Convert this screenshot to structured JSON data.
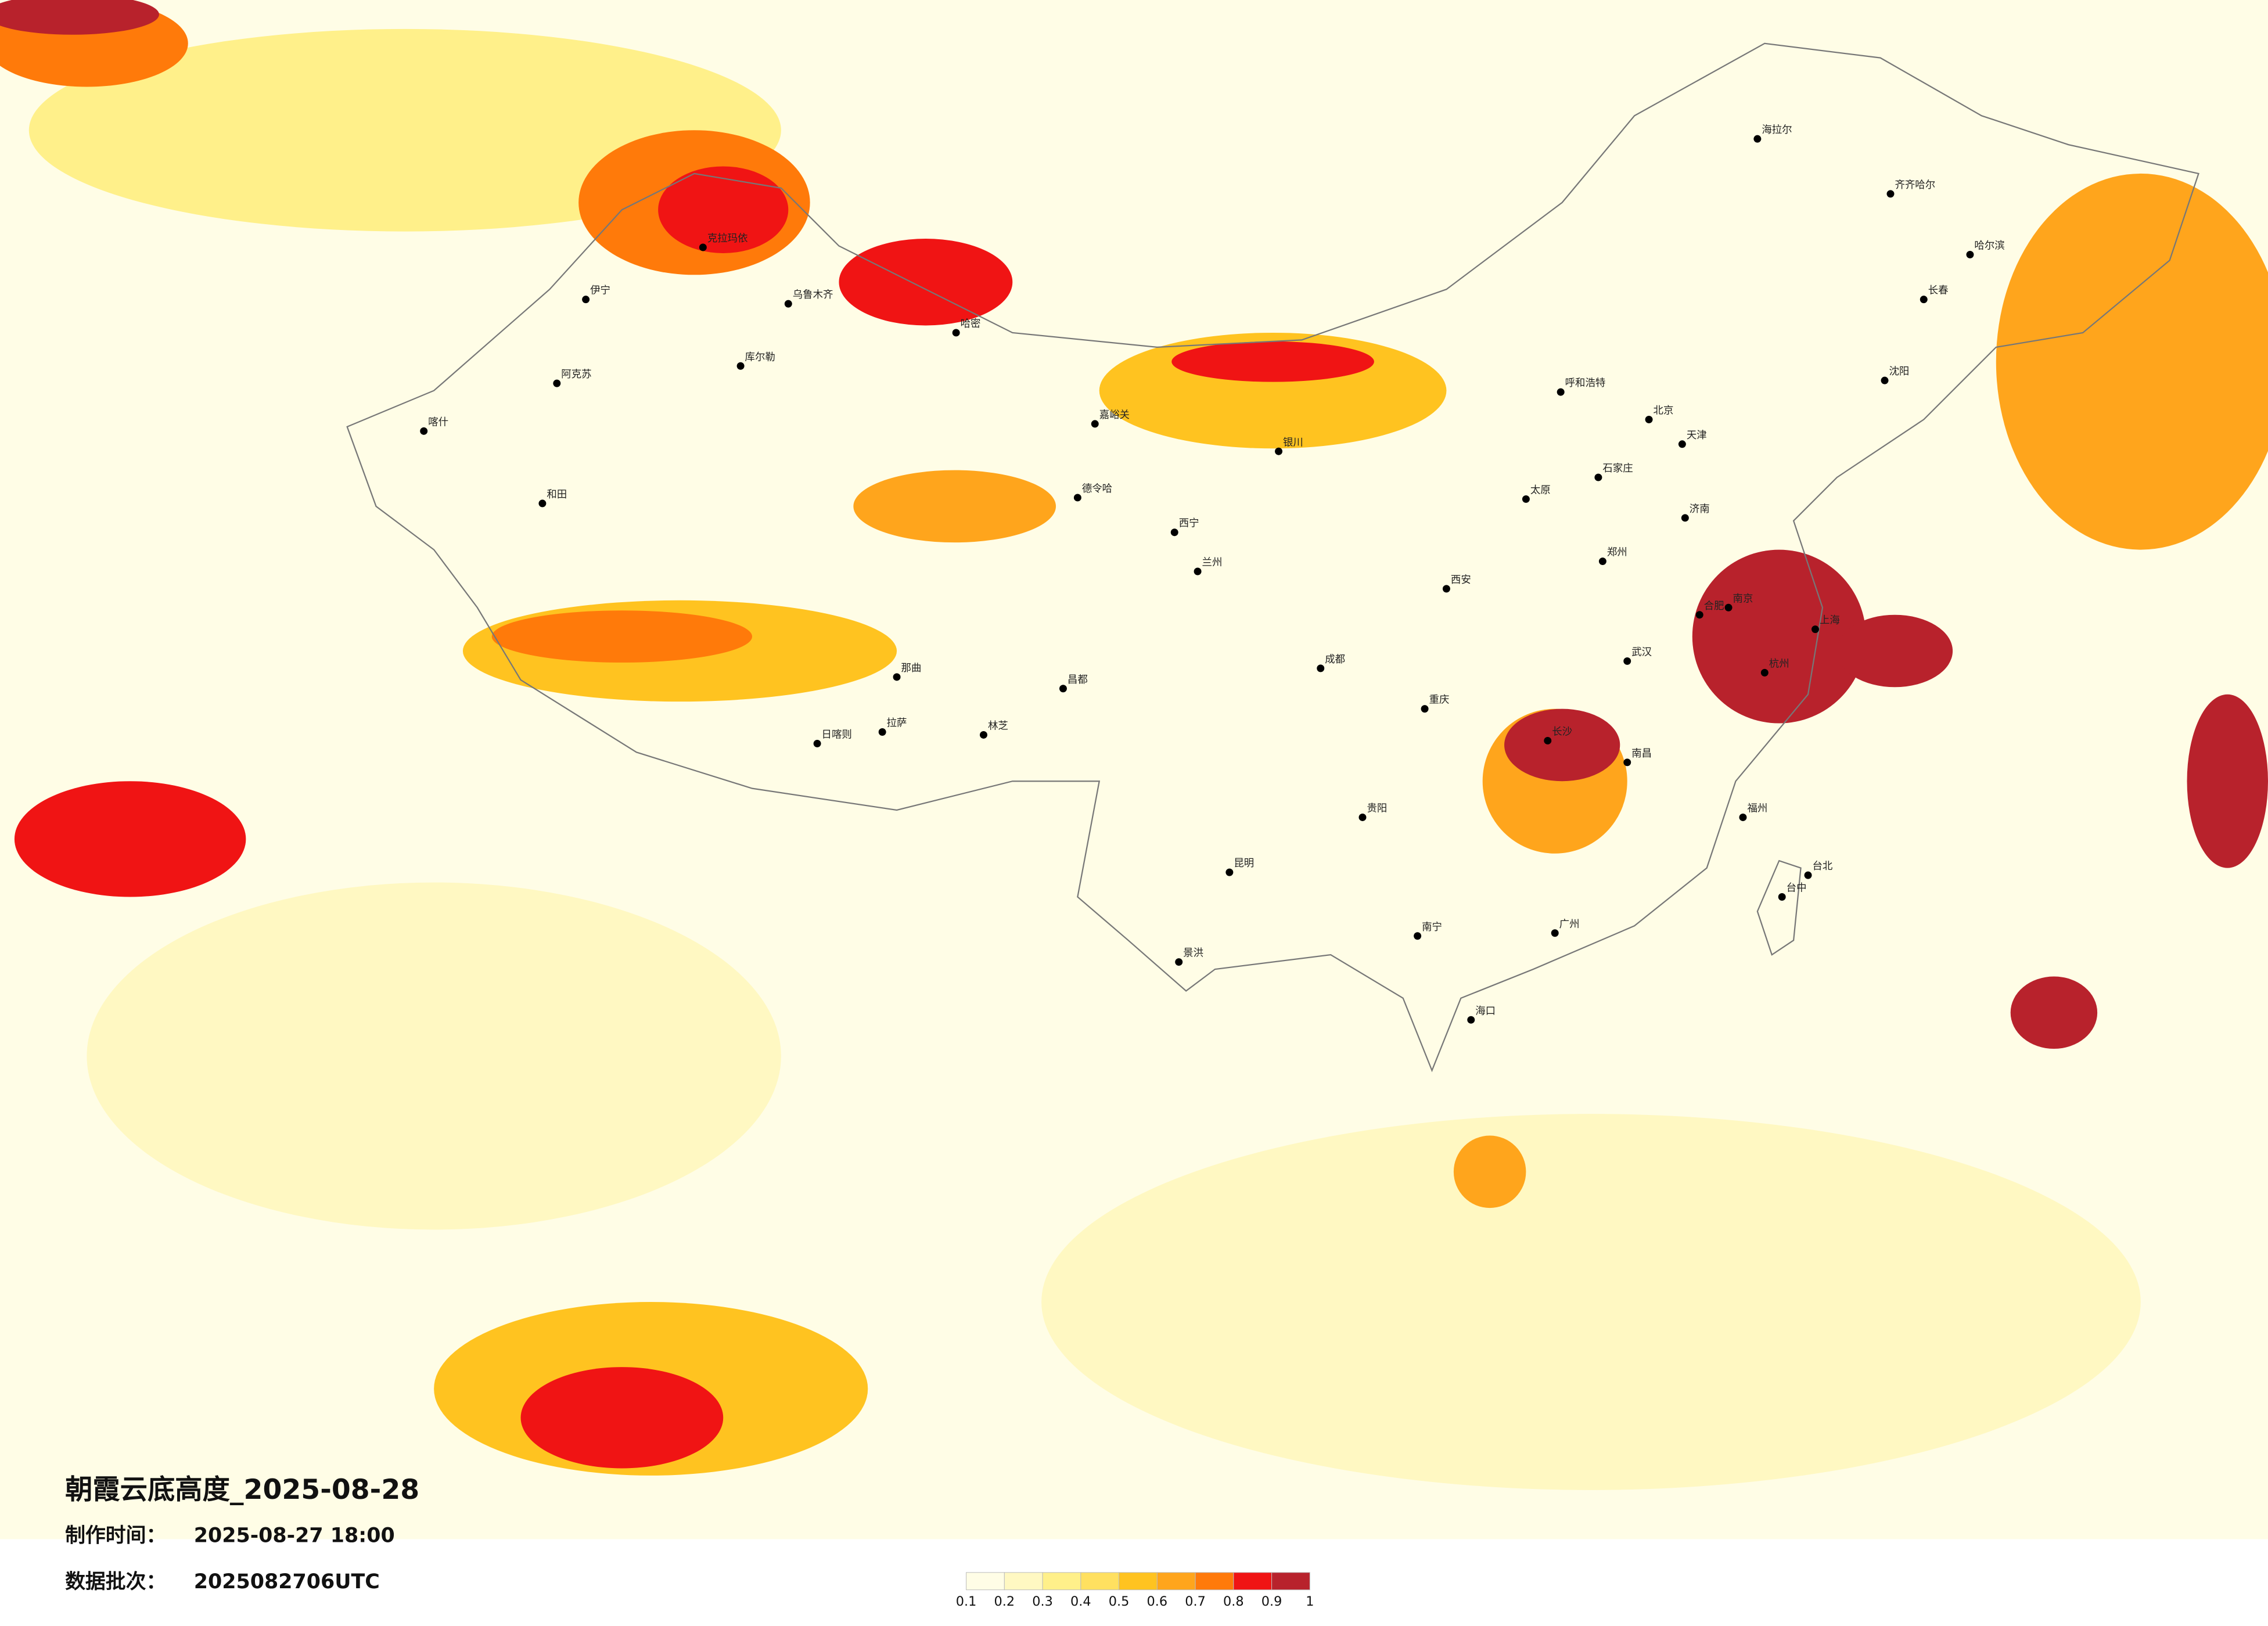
{
  "header": {
    "title": "朝霞云底高度_2025-08-28",
    "made_label": "制作时间：",
    "made_value": "2025-08-27 18:00",
    "batch_label": "数据批次：",
    "batch_value": "2025082706UTC"
  },
  "legend": {
    "colors": [
      "#fffde6",
      "#fff8c2",
      "#fff08a",
      "#ffe060",
      "#ffc320",
      "#ffa51c",
      "#ff7a0a",
      "#f01414",
      "#b8222c"
    ],
    "ticks": [
      0.1,
      0.2,
      0.3,
      0.4,
      0.5,
      0.6,
      0.7,
      0.8,
      0.9,
      1
    ]
  },
  "cities": [
    "伊宁",
    "克拉玛依",
    "乌鲁木齐",
    "库尔勒",
    "阿克苏",
    "喀什",
    "和田",
    "哈密",
    "嘉峪关",
    "德令哈",
    "拉萨",
    "日喀则",
    "那曲",
    "林芝",
    "昌都",
    "西宁",
    "兰州",
    "银川",
    "呼和浩特",
    "海拉尔",
    "齐齐哈尔",
    "哈尔滨",
    "长春",
    "沈阳",
    "北京",
    "天津",
    "石家庄",
    "太原",
    "济南",
    "郑州",
    "西安",
    "成都",
    "重庆",
    "武汉",
    "合肥",
    "南京",
    "上海",
    "杭州",
    "长沙",
    "南昌",
    "福州",
    "贵阳",
    "昆明",
    "南宁",
    "广州",
    "海口",
    "台北",
    "台中",
    "景洪"
  ]
}
